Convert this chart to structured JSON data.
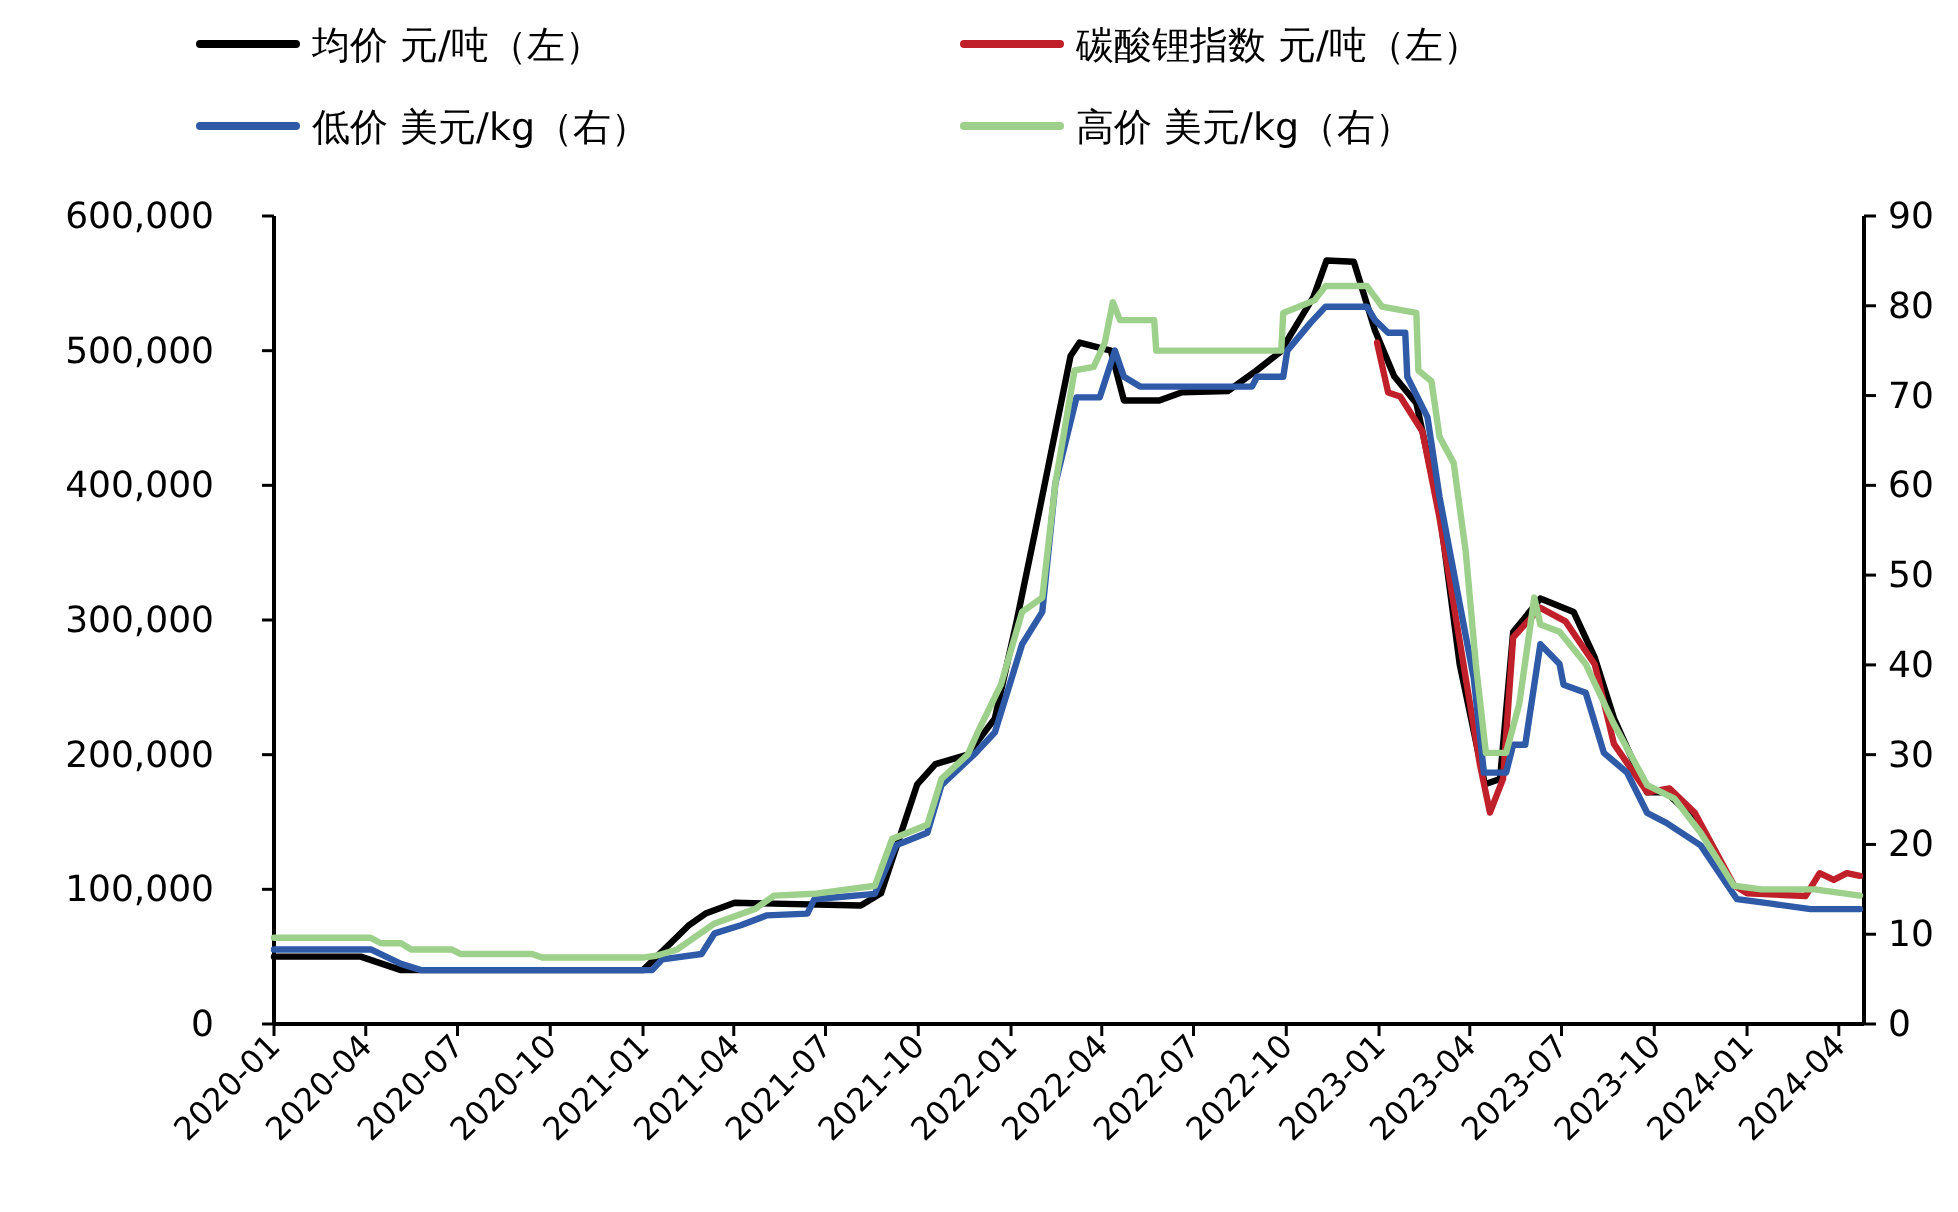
{
  "chart_data": {
    "type": "line",
    "xlim": [
      "2020-01-01",
      "2024-04-26"
    ],
    "xticks": [
      "2020-01",
      "2020-04",
      "2020-07",
      "2020-10",
      "2021-01",
      "2021-04",
      "2021-07",
      "2021-10",
      "2022-01",
      "2022-04",
      "2022-07",
      "2022-10",
      "2023-01",
      "2023-04",
      "2023-07",
      "2023-10",
      "2024-01",
      "2024-04"
    ],
    "ylim": [
      0,
      600000
    ],
    "yticks": [
      0,
      {
        "value": 100000,
        "label": "100,000"
      },
      {
        "value": 200000,
        "label": "200,000"
      },
      {
        "value": 300000,
        "label": "300,000"
      },
      {
        "value": 400000,
        "label": "400,000"
      },
      {
        "value": 500000,
        "label": "500,000"
      },
      {
        "value": 600000,
        "label": "600,000"
      }
    ],
    "y2lim": [
      0,
      90
    ],
    "y2ticks": [
      0,
      10,
      20,
      30,
      40,
      50,
      60,
      70,
      80,
      90
    ],
    "legend": "top",
    "series": [
      {
        "name": "均价 元/吨（左）",
        "color": "#000000",
        "x": [
          "2020-01-01",
          "2020-03-27",
          "2020-05-06",
          "2021-01-01",
          "2021-02-15",
          "2021-03-04",
          "2021-04-02",
          "2021-08-05",
          "2021-08-25",
          "2021-09-14",
          "2021-09-30",
          "2021-10-18",
          "2021-11-19",
          "2021-12-16",
          "2022-01-06",
          "2022-01-25",
          "2022-03-01",
          "2022-03-10",
          "2022-04-10",
          "2022-04-23",
          "2022-05-28",
          "2022-06-19",
          "2022-08-04",
          "2022-09-01",
          "2022-09-25",
          "2022-10-28",
          "2022-11-10",
          "2022-12-07",
          "2022-12-28",
          "2023-01-16",
          "2023-02-07",
          "2023-03-02",
          "2023-03-22",
          "2023-04-16",
          "2023-05-01",
          "2023-05-14",
          "2023-06-10",
          "2023-07-13",
          "2023-08-03",
          "2023-08-22",
          "2023-09-24",
          "2023-10-13",
          "2023-11-10"
        ],
        "values": [
          50000,
          50000,
          40000,
          40000,
          73000,
          82000,
          90000,
          88000,
          97000,
          142000,
          178000,
          193000,
          200000,
          227000,
          297000,
          366000,
          496000,
          506000,
          500000,
          463000,
          463000,
          469000,
          470000,
          485000,
          499000,
          540000,
          567000,
          566000,
          515000,
          481000,
          461000,
          381000,
          267000,
          178000,
          182000,
          291000,
          316000,
          306000,
          272000,
          227000,
          172000,
          172000,
          152000
        ]
      },
      {
        "name": "碳酸锂指数 元/吨（左）",
        "color": "#c0202a",
        "x": [
          "2022-12-30",
          "2023-01-10",
          "2023-01-22",
          "2023-02-13",
          "2023-03-02",
          "2023-03-28",
          "2023-04-11",
          "2023-04-21",
          "2023-05-04",
          "2023-05-14",
          "2023-05-26",
          "2023-06-10",
          "2023-07-05",
          "2023-08-03",
          "2023-08-22",
          "2023-09-24",
          "2023-10-16",
          "2023-11-10",
          "2023-12-19",
          "2024-01-01",
          "2024-02-28",
          "2024-03-13",
          "2024-03-27",
          "2024-04-09",
          "2024-04-22"
        ],
        "values": [
          506000,
          469000,
          466000,
          440000,
          376000,
          257000,
          193000,
          157000,
          182000,
          287000,
          297000,
          309000,
          299000,
          267000,
          208000,
          172000,
          175000,
          157000,
          103000,
          97000,
          95000,
          112000,
          107000,
          112000,
          110000
        ]
      },
      {
        "name": "低价 美元/kg（右）",
        "color": "#2e5aa8",
        "axis": "y2",
        "x": [
          "2020-01-01",
          "2020-04-06",
          "2020-05-06",
          "2020-05-26",
          "2021-01-10",
          "2021-01-20",
          "2021-02-28",
          "2021-03-13",
          "2021-04-08",
          "2021-05-04",
          "2021-06-13",
          "2021-06-20",
          "2021-08-19",
          "2021-09-09",
          "2021-10-10",
          "2021-10-24",
          "2021-11-27",
          "2021-12-16",
          "2022-01-12",
          "2022-02-01",
          "2022-02-14",
          "2022-03-07",
          "2022-03-30",
          "2022-04-14",
          "2022-04-23",
          "2022-05-09",
          "2022-08-28",
          "2022-09-02",
          "2022-09-28",
          "2022-10-02",
          "2022-10-25",
          "2022-11-09",
          "2022-12-20",
          "2022-12-28",
          "2023-01-10",
          "2023-01-27",
          "2023-01-29",
          "2023-02-18",
          "2023-03-02",
          "2023-03-22",
          "2023-04-05",
          "2023-04-15",
          "2023-05-07",
          "2023-05-14",
          "2023-05-26",
          "2023-06-10",
          "2023-06-29",
          "2023-07-03",
          "2023-07-25",
          "2023-08-12",
          "2023-09-04",
          "2023-09-24",
          "2023-10-13",
          "2023-11-16",
          "2023-12-22",
          "2024-01-25",
          "2024-03-04",
          "2024-04-22"
        ],
        "values": [
          8.3,
          8.3,
          6.7,
          6.0,
          6.0,
          7.2,
          7.8,
          10.1,
          11.0,
          12.1,
          12.3,
          13.9,
          14.5,
          19.9,
          21.3,
          26.6,
          30.2,
          32.5,
          42.3,
          45.9,
          60.2,
          69.8,
          69.8,
          75,
          72.1,
          71,
          71,
          72.1,
          72.1,
          75,
          78.1,
          79.9,
          79.9,
          78.4,
          77,
          77,
          72.1,
          67.6,
          58.7,
          46.8,
          38.5,
          28,
          28,
          31.1,
          31.1,
          42.3,
          40.1,
          37.8,
          36.9,
          30.2,
          28,
          23.5,
          22.4,
          19.9,
          13.9,
          13.4,
          12.8,
          12.8
        ]
      },
      {
        "name": "高价 美元/kg（右）",
        "color": "#9dd08a",
        "axis": "y2",
        "x": [
          "2020-01-01",
          "2020-04-06",
          "2020-04-16",
          "2020-05-06",
          "2020-05-16",
          "2020-06-25",
          "2020-07-04",
          "2020-09-13",
          "2020-09-23",
          "2021-01-01",
          "2021-01-14",
          "2021-02-04",
          "2021-03-13",
          "2021-04-22",
          "2021-05-11",
          "2021-06-20",
          "2021-08-19",
          "2021-09-05",
          "2021-10-10",
          "2021-10-24",
          "2021-11-19",
          "2021-11-29",
          "2021-12-22",
          "2022-01-12",
          "2022-02-01",
          "2022-02-14",
          "2022-03-05",
          "2022-03-24",
          "2022-04-04",
          "2022-04-12",
          "2022-04-19",
          "2022-05-23",
          "2022-05-25",
          "2022-09-26",
          "2022-09-28",
          "2022-10-29",
          "2022-11-09",
          "2022-12-20",
          "2023-01-04",
          "2023-02-07",
          "2023-02-09",
          "2023-02-22",
          "2023-03-02",
          "2023-03-16",
          "2023-03-28",
          "2023-04-07",
          "2023-04-17",
          "2023-05-07",
          "2023-05-20",
          "2023-06-04",
          "2023-06-10",
          "2023-06-29",
          "2023-07-25",
          "2023-08-22",
          "2023-09-24",
          "2023-10-21",
          "2023-11-16",
          "2023-12-19",
          "2024-01-15",
          "2024-03-08",
          "2024-04-22"
        ],
        "values": [
          9.6,
          9.6,
          9.0,
          9.0,
          8.3,
          8.3,
          7.8,
          7.8,
          7.4,
          7.4,
          7.6,
          8.3,
          11.2,
          12.8,
          14.3,
          14.5,
          15.4,
          20.6,
          22.2,
          27.3,
          30,
          32.5,
          37.8,
          45.9,
          47.5,
          60.2,
          72.8,
          73.2,
          75.9,
          80.4,
          78.4,
          78.4,
          75,
          75,
          79.2,
          80.6,
          82.2,
          82.2,
          79.9,
          79.2,
          72.8,
          71.6,
          65.4,
          62.5,
          52.6,
          40.1,
          30.2,
          30.2,
          35.6,
          47.5,
          44.5,
          43.7,
          40.1,
          33.4,
          26.6,
          25.1,
          21.3,
          15.4,
          15,
          15,
          14.3
        ]
      }
    ]
  }
}
